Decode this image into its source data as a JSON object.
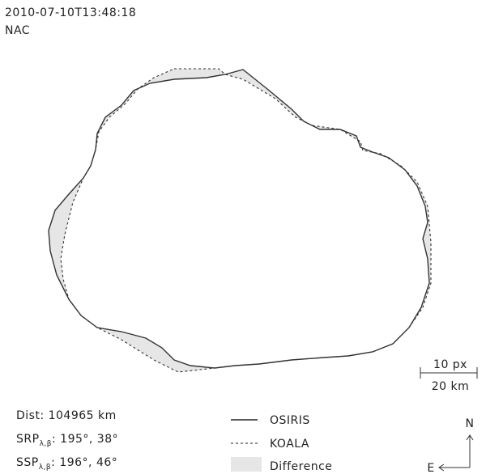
{
  "header": {
    "timestamp": "2010-07-10T13:48:18",
    "camera": "NAC"
  },
  "scale_bar": {
    "pixels": "10 px",
    "distance": "20 km"
  },
  "info": {
    "distance": "Dist: 104965 km",
    "srp": {
      "label": "SRP",
      "subscript": "λ,β",
      "value": ": 195°, 38°"
    },
    "ssp": {
      "label": "SSP",
      "subscript": "λ,β",
      "value": ": 196°, 46°"
    }
  },
  "legend": {
    "items": [
      "OSIRIS",
      "KOALA",
      "Difference"
    ]
  },
  "compass": {
    "north": "N",
    "east": "E"
  }
}
